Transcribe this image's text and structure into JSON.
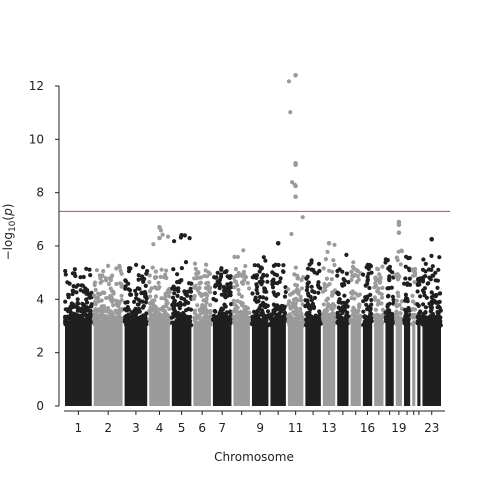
{
  "chart_data": {
    "type": "scatter",
    "subtype": "manhattan",
    "xlabel": "Chromosome",
    "ylabel": "−log10(p)",
    "ylim": [
      0,
      12
    ],
    "yticks": [
      0,
      2,
      4,
      6,
      8,
      10,
      12
    ],
    "xtick_labels": [
      "1",
      "2",
      "3",
      "4",
      "5",
      "6",
      "7",
      "9",
      "11",
      "13",
      "16",
      "19",
      "23"
    ],
    "significance_line": 7.3,
    "colors": {
      "dark": "#1f1f1f",
      "light": "#9b9b9b",
      "threshold": "#a0595d"
    },
    "chromosomes": [
      {
        "chr": 1,
        "color": "dark",
        "max": 5.5
      },
      {
        "chr": 2,
        "color": "light",
        "max": 5.6
      },
      {
        "chr": 3,
        "color": "dark",
        "max": 5.3
      },
      {
        "chr": 4,
        "color": "light",
        "max": 6.7
      },
      {
        "chr": 5,
        "color": "dark",
        "max": 6.4
      },
      {
        "chr": 6,
        "color": "light",
        "max": 5.6
      },
      {
        "chr": 7,
        "color": "dark",
        "max": 5.3
      },
      {
        "chr": 8,
        "color": "light",
        "max": 6.1
      },
      {
        "chr": 9,
        "color": "dark",
        "max": 5.6
      },
      {
        "chr": 10,
        "color": "dark",
        "max": 6.1
      },
      {
        "chr": 11,
        "color": "light",
        "max": 12.4
      },
      {
        "chr": 12,
        "color": "dark",
        "max": 5.5
      },
      {
        "chr": 13,
        "color": "light",
        "max": 6.1
      },
      {
        "chr": 14,
        "color": "dark",
        "max": 5.7
      },
      {
        "chr": 15,
        "color": "light",
        "max": 5.4
      },
      {
        "chr": 16,
        "color": "dark",
        "max": 5.3
      },
      {
        "chr": 17,
        "color": "light",
        "max": 5.3
      },
      {
        "chr": 18,
        "color": "dark",
        "max": 5.5
      },
      {
        "chr": 19,
        "color": "light",
        "max": 6.9
      },
      {
        "chr": 20,
        "color": "dark",
        "max": 5.7
      },
      {
        "chr": 21,
        "color": "light",
        "max": 5.3
      },
      {
        "chr": 22,
        "color": "dark",
        "max": 4.5
      },
      {
        "chr": 23,
        "color": "dark",
        "max": 6.3
      }
    ],
    "notable_points": [
      {
        "chr": 11,
        "y": 12.4
      },
      {
        "chr": 11,
        "y": 9.1
      },
      {
        "chr": 11,
        "y": 9.05
      },
      {
        "chr": 11,
        "y": 8.25
      },
      {
        "chr": 11,
        "y": 7.85
      },
      {
        "chr": 19,
        "y": 6.9
      },
      {
        "chr": 19,
        "y": 6.8
      },
      {
        "chr": 19,
        "y": 6.5
      },
      {
        "chr": 4,
        "y": 6.7
      },
      {
        "chr": 4,
        "y": 6.3
      },
      {
        "chr": 5,
        "y": 6.4
      },
      {
        "chr": 23,
        "y": 6.25
      },
      {
        "chr": 10,
        "y": 6.1
      },
      {
        "chr": 13,
        "y": 6.1
      }
    ]
  }
}
